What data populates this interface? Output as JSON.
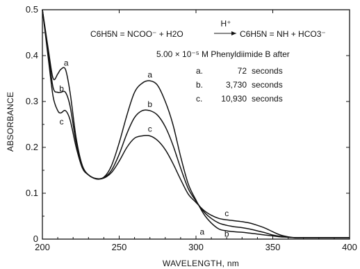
{
  "chart_data": {
    "type": "line",
    "xlabel": "WAVELENGTH, nm",
    "ylabel": "ABSORBANCE",
    "xlim": [
      200,
      400
    ],
    "ylim": [
      0,
      0.5
    ],
    "xticks": [
      200,
      250,
      300,
      350,
      400
    ],
    "yticks": [
      0,
      0.1,
      0.2,
      0.3,
      0.4,
      0.5
    ],
    "ytick_labels": [
      "0",
      "0.1",
      "0.2",
      "0.3",
      "0.4",
      "0.5"
    ],
    "equation": {
      "reactant": "C6H5N = NCOO⁻ + H2O",
      "arrow_label": "H⁺",
      "product": "C6H5N = NH + HCO3⁻"
    },
    "conditions": "5.00 × 10⁻⁵ M Phenyldiimide B after",
    "legend": [
      {
        "key": "a.",
        "time": "72",
        "unit": "seconds"
      },
      {
        "key": "b.",
        "time": "3,730",
        "unit": "seconds"
      },
      {
        "key": "c.",
        "time": "10,930",
        "unit": "seconds"
      }
    ],
    "series": [
      {
        "label": "a",
        "x": [
          200,
          204,
          207,
          210,
          212,
          215,
          218,
          222,
          226,
          230,
          235,
          240,
          245,
          250,
          255,
          260,
          265,
          270,
          275,
          280,
          285,
          290,
          295,
          300,
          305,
          310,
          315,
          320,
          325,
          330,
          335,
          340,
          345,
          350,
          355,
          360,
          365,
          370,
          380,
          390,
          400
        ],
        "y": [
          0.5,
          0.41,
          0.35,
          0.36,
          0.37,
          0.37,
          0.32,
          0.22,
          0.16,
          0.14,
          0.132,
          0.135,
          0.16,
          0.21,
          0.27,
          0.32,
          0.34,
          0.345,
          0.335,
          0.3,
          0.25,
          0.18,
          0.12,
          0.085,
          0.055,
          0.035,
          0.022,
          0.018,
          0.016,
          0.015,
          0.013,
          0.011,
          0.009,
          0.007,
          0.005,
          0.004,
          0.003,
          0.003,
          0.003,
          0.003,
          0.003
        ]
      },
      {
        "label": "b",
        "x": [
          200,
          204,
          207,
          210,
          212,
          215,
          218,
          222,
          226,
          230,
          235,
          240,
          245,
          250,
          255,
          260,
          265,
          270,
          275,
          280,
          285,
          290,
          295,
          300,
          305,
          310,
          315,
          320,
          325,
          330,
          335,
          340,
          345,
          350,
          355,
          360,
          365,
          370,
          380,
          390,
          400
        ],
        "y": [
          0.5,
          0.4,
          0.33,
          0.32,
          0.32,
          0.32,
          0.29,
          0.21,
          0.16,
          0.14,
          0.132,
          0.134,
          0.15,
          0.185,
          0.23,
          0.265,
          0.28,
          0.28,
          0.27,
          0.245,
          0.205,
          0.155,
          0.11,
          0.083,
          0.06,
          0.045,
          0.035,
          0.03,
          0.027,
          0.025,
          0.022,
          0.018,
          0.014,
          0.009,
          0.006,
          0.004,
          0.003,
          0.003,
          0.003,
          0.003,
          0.003
        ]
      },
      {
        "label": "c",
        "x": [
          200,
          204,
          207,
          210,
          212,
          215,
          218,
          222,
          226,
          230,
          235,
          240,
          245,
          250,
          255,
          260,
          265,
          270,
          275,
          280,
          285,
          290,
          295,
          300,
          305,
          310,
          315,
          320,
          325,
          330,
          335,
          340,
          345,
          350,
          355,
          360,
          365,
          370,
          380,
          390,
          400
        ],
        "y": [
          0.5,
          0.39,
          0.31,
          0.28,
          0.275,
          0.28,
          0.26,
          0.2,
          0.155,
          0.14,
          0.131,
          0.133,
          0.145,
          0.17,
          0.2,
          0.22,
          0.225,
          0.225,
          0.215,
          0.195,
          0.165,
          0.13,
          0.098,
          0.08,
          0.063,
          0.052,
          0.045,
          0.042,
          0.04,
          0.038,
          0.035,
          0.03,
          0.024,
          0.016,
          0.009,
          0.005,
          0.003,
          0.003,
          0.003,
          0.003,
          0.003
        ]
      }
    ],
    "colors": {
      "ink": "#111111",
      "background": "#ffffff"
    }
  }
}
